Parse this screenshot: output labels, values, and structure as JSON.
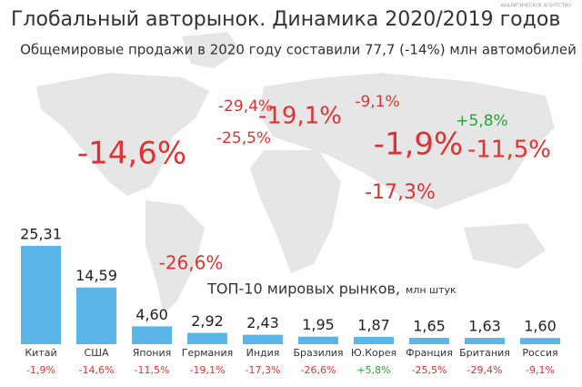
{
  "chart_data": {
    "type": "bar",
    "title": "Глобальный авторынок. Динамика 2020/2019 годов",
    "subtitle": "Общемировые продажи в 2020 году составили 77,7 (-14%) млн автомобилей",
    "chart_title": "ТОП-10 мировых рынков,",
    "unit": "млн штук",
    "agency": "АНАЛИТИЧЕСКОЕ АГЕНТСТВО",
    "categories": [
      "Китай",
      "США",
      "Япония",
      "Германия",
      "Индия",
      "Бразилия",
      "Ю.Корея",
      "Франция",
      "Британия",
      "Россия"
    ],
    "values": [
      25.31,
      14.59,
      4.6,
      2.92,
      2.43,
      1.95,
      1.87,
      1.65,
      1.63,
      1.6
    ],
    "value_labels": [
      "25,31",
      "14,59",
      "4,60",
      "2,92",
      "2,43",
      "1,95",
      "1,87",
      "1,65",
      "1,63",
      "1,60"
    ],
    "changes": [
      "-1,9%",
      "-14,6%",
      "-11,5%",
      "-19,1%",
      "-17,3%",
      "-26,6%",
      "+5,8%",
      "-25,5%",
      "-29,4%",
      "-9,1%"
    ],
    "color": "#5bb6e8",
    "negative_color": "#e03232",
    "positive_color": "#2e9e3a",
    "map_labels": [
      "-14,6%",
      "-29,4%",
      "-19,1%",
      "-25,5%",
      "-9,1%",
      "+5,8%",
      "-1,9%",
      "-11,5%",
      "-17,3%",
      "-26,6%"
    ]
  }
}
